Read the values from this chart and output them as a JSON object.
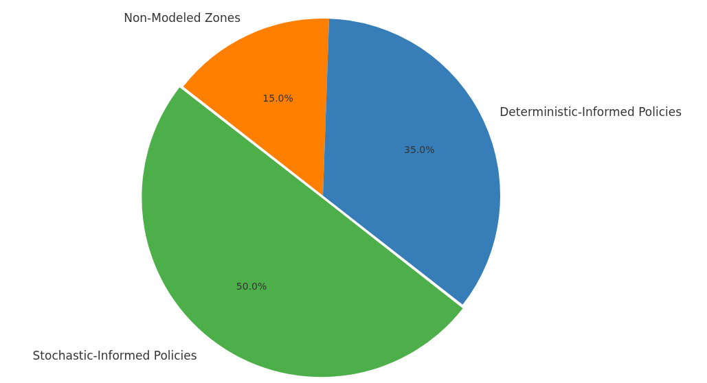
{
  "chart_data": {
    "type": "pie",
    "categories": [
      "Stochastic-Informed Policies",
      "Non-Modeled Zones",
      "Deterministic-Informed Policies"
    ],
    "values": [
      50,
      15,
      35
    ],
    "colors": [
      "#4daf4a",
      "#ff7f00",
      "#377eb8"
    ],
    "value_labels": [
      "50.0%",
      "15.0%",
      "35.0%"
    ],
    "legend": false
  }
}
